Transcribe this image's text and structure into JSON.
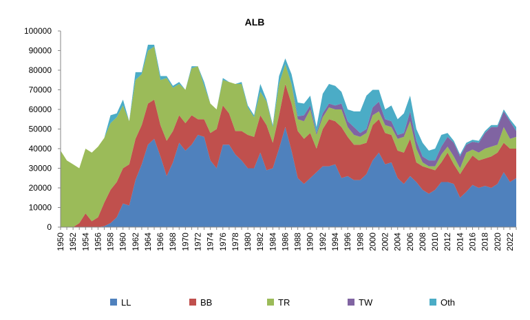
{
  "chart_data": {
    "type": "area",
    "stacked": true,
    "title": "ALB",
    "xlabel": "",
    "ylabel": "",
    "ylim": [
      0,
      100000
    ],
    "yticks": [
      0,
      10000,
      20000,
      30000,
      40000,
      50000,
      60000,
      70000,
      80000,
      90000,
      100000
    ],
    "xrange": [
      1950,
      2023
    ],
    "xticks": [
      "1950",
      "1952",
      "1954",
      "1956",
      "1958",
      "1960",
      "1962",
      "1964",
      "1966",
      "1968",
      "1970",
      "1972",
      "1974",
      "1976",
      "1978",
      "1980",
      "1982",
      "1984",
      "1986",
      "1988",
      "1990",
      "1992",
      "1994",
      "1996",
      "1998",
      "2000",
      "2002",
      "2004",
      "2006",
      "2008",
      "2010",
      "2012",
      "2014",
      "2016",
      "2018",
      "2020",
      "2022"
    ],
    "grid": false,
    "legend_position": "bottom",
    "x": [
      1950,
      1951,
      1952,
      1953,
      1954,
      1955,
      1956,
      1957,
      1958,
      1959,
      1960,
      1961,
      1962,
      1963,
      1964,
      1965,
      1966,
      1967,
      1968,
      1969,
      1970,
      1971,
      1972,
      1973,
      1974,
      1975,
      1976,
      1977,
      1978,
      1979,
      1980,
      1981,
      1982,
      1983,
      1984,
      1985,
      1986,
      1987,
      1988,
      1989,
      1990,
      1991,
      1992,
      1993,
      1994,
      1995,
      1996,
      1997,
      1998,
      1999,
      2000,
      2001,
      2002,
      2003,
      2004,
      2005,
      2006,
      2007,
      2008,
      2009,
      2010,
      2011,
      2012,
      2013,
      2014,
      2015,
      2016,
      2017,
      2018,
      2019,
      2020,
      2021,
      2022,
      2023
    ],
    "series": [
      {
        "name": "LL",
        "color": "#4F81BD",
        "values": [
          0,
          0,
          0,
          0,
          0,
          0,
          0,
          500,
          2000,
          5000,
          12000,
          11000,
          24000,
          32000,
          42000,
          45000,
          36000,
          26000,
          33000,
          43000,
          39000,
          42000,
          47000,
          46000,
          34000,
          30000,
          42000,
          42000,
          37000,
          34000,
          30000,
          30000,
          38000,
          29000,
          30000,
          40000,
          51000,
          39000,
          25000,
          22000,
          25000,
          28000,
          31000,
          31000,
          32000,
          25000,
          26000,
          24000,
          24000,
          27000,
          34000,
          38000,
          32000,
          33000,
          25000,
          22000,
          26000,
          23000,
          19000,
          17000,
          19000,
          23000,
          23000,
          22000,
          15000,
          18000,
          21500,
          20000,
          21000,
          20000,
          22000,
          28000,
          23000,
          25000
        ]
      },
      {
        "name": "BB",
        "color": "#C0504D",
        "values": [
          0,
          0,
          0,
          2000,
          7000,
          3000,
          5000,
          12000,
          17000,
          18000,
          18000,
          21000,
          21000,
          20000,
          21000,
          20000,
          16000,
          18000,
          16000,
          14000,
          14000,
          15000,
          8000,
          9000,
          14000,
          20000,
          20000,
          16000,
          12000,
          15000,
          17000,
          16000,
          19000,
          23000,
          13000,
          17000,
          22000,
          24000,
          24000,
          23000,
          23000,
          12000,
          19000,
          24000,
          22000,
          26000,
          20000,
          18000,
          18000,
          16000,
          18000,
          17000,
          16000,
          14000,
          14000,
          16000,
          19000,
          10000,
          12000,
          13000,
          10000,
          10000,
          15000,
          10000,
          12000,
          14000,
          15000,
          14000,
          14000,
          16000,
          16000,
          15000,
          17000,
          15000
        ]
      },
      {
        "name": "TR",
        "color": "#9BBB59",
        "values": [
          39000,
          34000,
          32000,
          28000,
          33000,
          35000,
          36000,
          33000,
          34000,
          33000,
          32000,
          22000,
          30000,
          26000,
          27000,
          27000,
          23000,
          32000,
          22000,
          16000,
          17000,
          24000,
          27000,
          17000,
          15000,
          10000,
          13000,
          16000,
          24000,
          24000,
          14000,
          10000,
          12000,
          12000,
          8000,
          16000,
          10000,
          10000,
          6000,
          9000,
          12000,
          7000,
          6000,
          6000,
          6000,
          9000,
          5000,
          5000,
          4000,
          5000,
          5000,
          4000,
          4000,
          4000,
          6000,
          8000,
          9000,
          7000,
          2000,
          1000,
          2000,
          4000,
          3000,
          4000,
          3000,
          6000,
          3000,
          4000,
          5000,
          5000,
          4000,
          8000,
          5000,
          6000
        ]
      },
      {
        "name": "TW",
        "color": "#8064A2",
        "values": [
          0,
          0,
          0,
          0,
          0,
          0,
          0,
          0,
          0,
          0,
          0,
          0,
          0,
          0,
          0,
          0,
          0,
          0,
          0,
          0,
          0,
          0,
          0,
          0,
          0,
          0,
          0,
          0,
          0,
          0,
          0,
          0,
          0,
          0,
          0,
          0,
          0,
          0,
          1500,
          3000,
          2000,
          1000,
          2000,
          2000,
          2000,
          3000,
          3000,
          4000,
          2000,
          2000,
          4000,
          5000,
          3000,
          3000,
          2000,
          2000,
          5000,
          4000,
          3000,
          3000,
          3000,
          4000,
          5000,
          7000,
          6000,
          4000,
          4000,
          5000,
          8000,
          10000,
          9000,
          8000,
          9000,
          3000
        ]
      },
      {
        "name": "Oth",
        "color": "#4BACC6",
        "values": [
          0,
          0,
          0,
          0,
          0,
          0,
          0,
          0,
          4000,
          2000,
          3000,
          0,
          4000,
          1000,
          3000,
          1000,
          2000,
          1000,
          1000,
          1000,
          0,
          1000,
          0,
          2000,
          0,
          0,
          1000,
          0,
          0,
          1000,
          1000,
          1000,
          4000,
          1000,
          1000,
          4000,
          3000,
          5000,
          7000,
          6000,
          5000,
          3000,
          10000,
          10000,
          10000,
          6000,
          6000,
          8000,
          11000,
          17000,
          9000,
          6000,
          5000,
          8000,
          8000,
          10000,
          8000,
          6000,
          7000,
          5000,
          6000,
          6000,
          2000,
          1000,
          1000,
          1000,
          1000,
          1000,
          1000,
          1000,
          1000,
          1000,
          1000,
          2000
        ]
      }
    ]
  }
}
